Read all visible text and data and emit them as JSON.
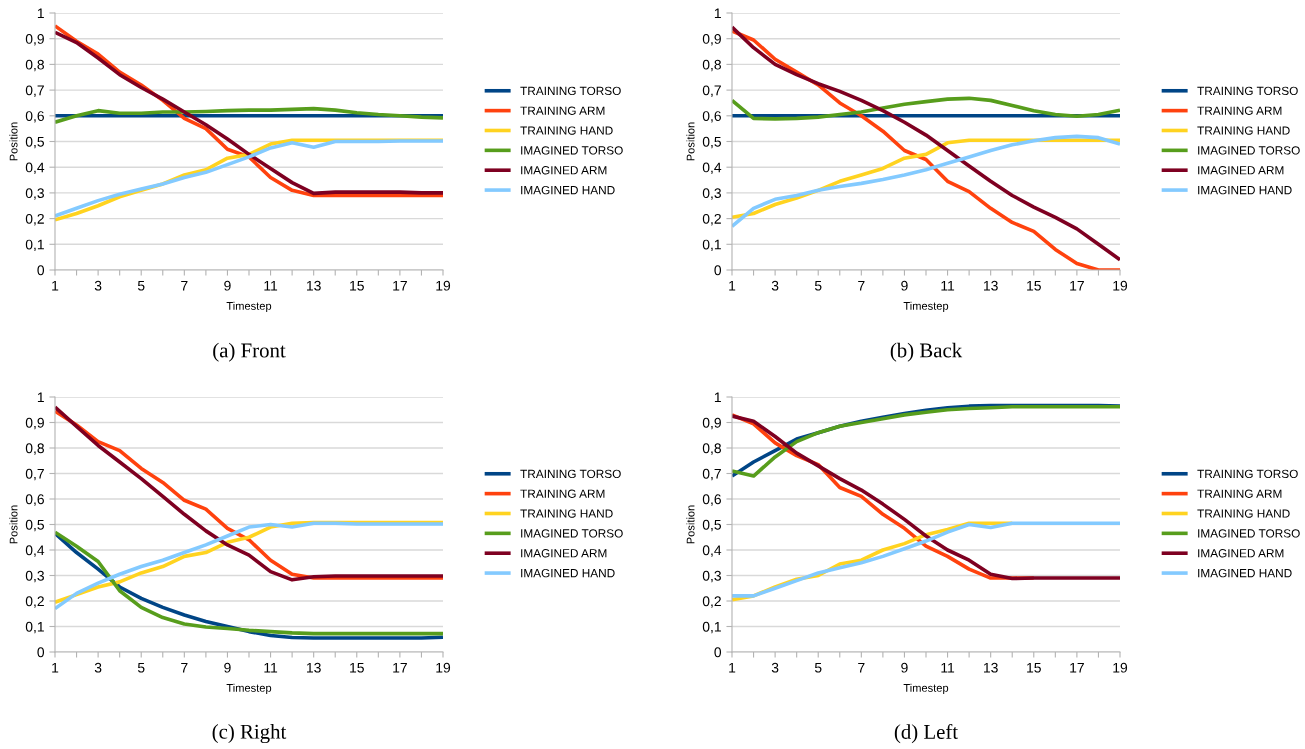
{
  "chart_data": [
    {
      "type": "line",
      "title": "(a) Front",
      "xlabel": "Timestep",
      "ylabel": "Position",
      "grid": "y",
      "legend": "right",
      "line_style": "solid",
      "marker": "none",
      "x": [
        1,
        2,
        3,
        4,
        5,
        6,
        7,
        8,
        9,
        10,
        11,
        12,
        13,
        14,
        15,
        16,
        17,
        18,
        19
      ],
      "xlim": [
        1,
        19
      ],
      "xticks": [
        1,
        {
          "value": 2,
          "label": null
        },
        3,
        {
          "value": 4,
          "label": null
        },
        5,
        {
          "value": 6,
          "label": null
        },
        7,
        {
          "value": 8,
          "label": null
        },
        9,
        {
          "value": 10,
          "label": null
        },
        11,
        {
          "value": 12,
          "label": null
        },
        13,
        {
          "value": 14,
          "label": null
        },
        15,
        {
          "value": 16,
          "label": null
        },
        17,
        {
          "value": 18,
          "label": null
        },
        19
      ],
      "ylim": [
        0,
        1
      ],
      "yticks": [
        0,
        {
          "value": 0.1,
          "label": "0,1"
        },
        {
          "value": 0.2,
          "label": "0,2"
        },
        {
          "value": 0.3,
          "label": "0,3"
        },
        {
          "value": 0.4,
          "label": "0,4"
        },
        {
          "value": 0.5,
          "label": "0,5"
        },
        {
          "value": 0.6,
          "label": "0,6"
        },
        {
          "value": 0.7,
          "label": "0,7"
        },
        {
          "value": 0.8,
          "label": "0,8"
        },
        {
          "value": 0.9,
          "label": "0,9"
        },
        1
      ],
      "series": [
        {
          "name": "TRAINING TORSO",
          "color": "#004586",
          "values": [
            0.6,
            0.6,
            0.6,
            0.6,
            0.6,
            0.6,
            0.6,
            0.6,
            0.6,
            0.6,
            0.6,
            0.6,
            0.6,
            0.6,
            0.6,
            0.6,
            0.6,
            0.6,
            0.6
          ]
        },
        {
          "name": "TRAINING ARM",
          "color": "#ff420e",
          "values": [
            0.95,
            0.89,
            0.84,
            0.77,
            0.72,
            0.66,
            0.59,
            0.55,
            0.47,
            0.44,
            0.36,
            0.31,
            0.29,
            0.29,
            0.29,
            0.29,
            0.29,
            0.29,
            0.29
          ]
        },
        {
          "name": "TRAINING HAND",
          "color": "#ffd320",
          "values": [
            0.195,
            0.22,
            0.25,
            0.285,
            0.31,
            0.335,
            0.37,
            0.39,
            0.435,
            0.45,
            0.49,
            0.505,
            0.505,
            0.505,
            0.505,
            0.505,
            0.505,
            0.505,
            0.505
          ]
        },
        {
          "name": "IMAGINED TORSO",
          "color": "#579d1c",
          "values": [
            0.575,
            0.6,
            0.62,
            0.61,
            0.61,
            0.615,
            0.615,
            0.617,
            0.62,
            0.622,
            0.622,
            0.625,
            0.628,
            0.622,
            0.612,
            0.605,
            0.6,
            0.595,
            0.592
          ]
        },
        {
          "name": "IMAGINED ARM",
          "color": "#7e0021",
          "values": [
            0.925,
            0.885,
            0.825,
            0.76,
            0.71,
            0.665,
            0.615,
            0.565,
            0.51,
            0.45,
            0.395,
            0.34,
            0.298,
            0.303,
            0.303,
            0.303,
            0.303,
            0.3,
            0.3
          ]
        },
        {
          "name": "IMAGINED HAND",
          "color": "#83caff",
          "values": [
            0.21,
            0.24,
            0.27,
            0.295,
            0.315,
            0.335,
            0.36,
            0.38,
            0.41,
            0.44,
            0.475,
            0.495,
            0.478,
            0.5,
            0.5,
            0.5,
            0.502,
            0.502,
            0.502
          ]
        }
      ]
    },
    {
      "type": "line",
      "title": "(b) Back",
      "xlabel": "Timestep",
      "ylabel": "Position",
      "grid": "y",
      "legend": "right",
      "line_style": "solid",
      "marker": "none",
      "x": [
        1,
        2,
        3,
        4,
        5,
        6,
        7,
        8,
        9,
        10,
        11,
        12,
        13,
        14,
        15,
        16,
        17,
        18,
        19
      ],
      "xlim": [
        1,
        19
      ],
      "xticks": [
        1,
        {
          "value": 2,
          "label": null
        },
        3,
        {
          "value": 4,
          "label": null
        },
        5,
        {
          "value": 6,
          "label": null
        },
        7,
        {
          "value": 8,
          "label": null
        },
        9,
        {
          "value": 10,
          "label": null
        },
        11,
        {
          "value": 12,
          "label": null
        },
        13,
        {
          "value": 14,
          "label": null
        },
        15,
        {
          "value": 16,
          "label": null
        },
        17,
        {
          "value": 18,
          "label": null
        },
        19
      ],
      "ylim": [
        0,
        1
      ],
      "yticks": [
        0,
        {
          "value": 0.1,
          "label": "0,1"
        },
        {
          "value": 0.2,
          "label": "0,2"
        },
        {
          "value": 0.3,
          "label": "0,3"
        },
        {
          "value": 0.4,
          "label": "0,4"
        },
        {
          "value": 0.5,
          "label": "0,5"
        },
        {
          "value": 0.6,
          "label": "0,6"
        },
        {
          "value": 0.7,
          "label": "0,7"
        },
        {
          "value": 0.8,
          "label": "0,8"
        },
        {
          "value": 0.9,
          "label": "0,9"
        },
        1
      ],
      "series": [
        {
          "name": "TRAINING TORSO",
          "color": "#004586",
          "values": [
            0.6,
            0.6,
            0.6,
            0.6,
            0.6,
            0.6,
            0.6,
            0.6,
            0.6,
            0.6,
            0.6,
            0.6,
            0.6,
            0.6,
            0.6,
            0.6,
            0.6,
            0.6,
            0.6
          ]
        },
        {
          "name": "TRAINING ARM",
          "color": "#ff420e",
          "values": [
            0.93,
            0.895,
            0.82,
            0.77,
            0.72,
            0.65,
            0.6,
            0.54,
            0.465,
            0.43,
            0.345,
            0.305,
            0.24,
            0.185,
            0.15,
            0.08,
            0.025,
            0,
            0
          ]
        },
        {
          "name": "TRAINING HAND",
          "color": "#ffd320",
          "values": [
            0.205,
            0.22,
            0.255,
            0.28,
            0.31,
            0.345,
            0.37,
            0.395,
            0.435,
            0.45,
            0.495,
            0.505,
            0.505,
            0.505,
            0.505,
            0.505,
            0.505,
            0.505,
            0.505
          ]
        },
        {
          "name": "IMAGINED TORSO",
          "color": "#579d1c",
          "values": [
            0.66,
            0.59,
            0.588,
            0.59,
            0.595,
            0.605,
            0.615,
            0.63,
            0.645,
            0.655,
            0.665,
            0.668,
            0.66,
            0.64,
            0.62,
            0.605,
            0.598,
            0.605,
            0.622
          ]
        },
        {
          "name": "IMAGINED ARM",
          "color": "#7e0021",
          "values": [
            0.945,
            0.865,
            0.8,
            0.76,
            0.725,
            0.695,
            0.66,
            0.62,
            0.575,
            0.525,
            0.465,
            0.405,
            0.345,
            0.29,
            0.245,
            0.205,
            0.16,
            0.1,
            0.04
          ]
        },
        {
          "name": "IMAGINED HAND",
          "color": "#83caff",
          "values": [
            0.17,
            0.24,
            0.275,
            0.29,
            0.31,
            0.325,
            0.337,
            0.352,
            0.37,
            0.39,
            0.415,
            0.44,
            0.465,
            0.487,
            0.503,
            0.515,
            0.52,
            0.515,
            0.49
          ]
        }
      ]
    },
    {
      "type": "line",
      "title": "(c) Right",
      "xlabel": "Timestep",
      "ylabel": "Position",
      "grid": "y",
      "legend": "right",
      "line_style": "solid",
      "marker": "none",
      "x": [
        1,
        2,
        3,
        4,
        5,
        6,
        7,
        8,
        9,
        10,
        11,
        12,
        13,
        14,
        15,
        16,
        17,
        18,
        19
      ],
      "xlim": [
        1,
        19
      ],
      "xticks": [
        1,
        {
          "value": 2,
          "label": null
        },
        3,
        {
          "value": 4,
          "label": null
        },
        5,
        {
          "value": 6,
          "label": null
        },
        7,
        {
          "value": 8,
          "label": null
        },
        9,
        {
          "value": 10,
          "label": null
        },
        11,
        {
          "value": 12,
          "label": null
        },
        13,
        {
          "value": 14,
          "label": null
        },
        15,
        {
          "value": 16,
          "label": null
        },
        17,
        {
          "value": 18,
          "label": null
        },
        19
      ],
      "ylim": [
        0,
        1
      ],
      "yticks": [
        0,
        {
          "value": 0.1,
          "label": "0,1"
        },
        {
          "value": 0.2,
          "label": "0,2"
        },
        {
          "value": 0.3,
          "label": "0,3"
        },
        {
          "value": 0.4,
          "label": "0,4"
        },
        {
          "value": 0.5,
          "label": "0,5"
        },
        {
          "value": 0.6,
          "label": "0,6"
        },
        {
          "value": 0.7,
          "label": "0,7"
        },
        {
          "value": 0.8,
          "label": "0,8"
        },
        {
          "value": 0.9,
          "label": "0,9"
        },
        1
      ],
      "series": [
        {
          "name": "TRAINING TORSO",
          "color": "#004586",
          "values": [
            0.465,
            0.39,
            0.325,
            0.255,
            0.21,
            0.175,
            0.145,
            0.12,
            0.1,
            0.08,
            0.065,
            0.057,
            0.055,
            0.055,
            0.055,
            0.055,
            0.055,
            0.055,
            0.058
          ]
        },
        {
          "name": "TRAINING ARM",
          "color": "#ff420e",
          "values": [
            0.945,
            0.89,
            0.825,
            0.79,
            0.72,
            0.665,
            0.595,
            0.56,
            0.485,
            0.44,
            0.36,
            0.305,
            0.29,
            0.29,
            0.29,
            0.29,
            0.29,
            0.29,
            0.29
          ]
        },
        {
          "name": "TRAINING HAND",
          "color": "#ffd320",
          "values": [
            0.195,
            0.225,
            0.255,
            0.275,
            0.31,
            0.335,
            0.375,
            0.39,
            0.43,
            0.45,
            0.49,
            0.505,
            0.508,
            0.508,
            0.508,
            0.508,
            0.508,
            0.508,
            0.508
          ]
        },
        {
          "name": "IMAGINED TORSO",
          "color": "#579d1c",
          "values": [
            0.47,
            0.415,
            0.355,
            0.24,
            0.175,
            0.135,
            0.11,
            0.098,
            0.092,
            0.085,
            0.08,
            0.075,
            0.072,
            0.072,
            0.072,
            0.072,
            0.072,
            0.072,
            0.072
          ]
        },
        {
          "name": "IMAGINED ARM",
          "color": "#7e0021",
          "values": [
            0.96,
            0.885,
            0.81,
            0.745,
            0.68,
            0.61,
            0.54,
            0.475,
            0.42,
            0.38,
            0.315,
            0.283,
            0.295,
            0.298,
            0.298,
            0.298,
            0.298,
            0.298,
            0.298
          ]
        },
        {
          "name": "IMAGINED HAND",
          "color": "#83caff",
          "values": [
            0.17,
            0.23,
            0.27,
            0.305,
            0.335,
            0.36,
            0.39,
            0.42,
            0.455,
            0.49,
            0.5,
            0.49,
            0.505,
            0.505,
            0.502,
            0.502,
            0.502,
            0.502,
            0.502
          ]
        }
      ]
    },
    {
      "type": "line",
      "title": "(d) Left",
      "xlabel": "Timestep",
      "ylabel": "Position",
      "grid": "y",
      "legend": "right",
      "line_style": "solid",
      "marker": "none",
      "x": [
        1,
        2,
        3,
        4,
        5,
        6,
        7,
        8,
        9,
        10,
        11,
        12,
        13,
        14,
        15,
        16,
        17,
        18,
        19
      ],
      "xlim": [
        1,
        19
      ],
      "xticks": [
        1,
        {
          "value": 2,
          "label": null
        },
        3,
        {
          "value": 4,
          "label": null
        },
        5,
        {
          "value": 6,
          "label": null
        },
        7,
        {
          "value": 8,
          "label": null
        },
        9,
        {
          "value": 10,
          "label": null
        },
        11,
        {
          "value": 12,
          "label": null
        },
        13,
        {
          "value": 14,
          "label": null
        },
        15,
        {
          "value": 16,
          "label": null
        },
        17,
        {
          "value": 18,
          "label": null
        },
        19
      ],
      "ylim": [
        0,
        1
      ],
      "yticks": [
        0,
        {
          "value": 0.1,
          "label": "0,1"
        },
        {
          "value": 0.2,
          "label": "0,2"
        },
        {
          "value": 0.3,
          "label": "0,3"
        },
        {
          "value": 0.4,
          "label": "0,4"
        },
        {
          "value": 0.5,
          "label": "0,5"
        },
        {
          "value": 0.6,
          "label": "0,6"
        },
        {
          "value": 0.7,
          "label": "0,7"
        },
        {
          "value": 0.8,
          "label": "0,8"
        },
        {
          "value": 0.9,
          "label": "0,9"
        },
        1
      ],
      "series": [
        {
          "name": "TRAINING TORSO",
          "color": "#004586",
          "values": [
            0.69,
            0.745,
            0.79,
            0.835,
            0.86,
            0.885,
            0.905,
            0.92,
            0.935,
            0.948,
            0.958,
            0.964,
            0.966,
            0.966,
            0.966,
            0.966,
            0.966,
            0.966,
            0.964
          ]
        },
        {
          "name": "TRAINING ARM",
          "color": "#ff420e",
          "values": [
            0.93,
            0.895,
            0.82,
            0.77,
            0.735,
            0.645,
            0.61,
            0.54,
            0.485,
            0.415,
            0.375,
            0.325,
            0.29,
            0.29,
            0.29,
            null,
            null,
            null,
            null
          ]
        },
        {
          "name": "TRAINING HAND",
          "color": "#ffd320",
          "values": [
            0.205,
            0.22,
            0.255,
            0.285,
            0.3,
            0.345,
            0.36,
            0.4,
            0.425,
            0.46,
            0.48,
            0.505,
            0.505,
            0.505,
            null,
            null,
            null,
            null,
            null
          ]
        },
        {
          "name": "IMAGINED TORSO",
          "color": "#579d1c",
          "values": [
            0.71,
            0.69,
            0.765,
            0.825,
            0.86,
            0.885,
            0.9,
            0.915,
            0.93,
            0.94,
            0.95,
            0.955,
            0.958,
            0.962,
            0.962,
            0.962,
            0.962,
            0.962,
            0.962
          ]
        },
        {
          "name": "IMAGINED ARM",
          "color": "#7e0021",
          "values": [
            0.925,
            0.905,
            0.845,
            0.78,
            0.73,
            0.68,
            0.635,
            0.58,
            0.52,
            0.455,
            0.4,
            0.36,
            0.305,
            0.288,
            0.29,
            0.29,
            0.29,
            0.29,
            0.29
          ]
        },
        {
          "name": "IMAGINED HAND",
          "color": "#83caff",
          "values": [
            0.22,
            0.22,
            0.25,
            0.28,
            0.31,
            0.33,
            0.35,
            0.375,
            0.405,
            0.435,
            0.47,
            0.5,
            0.488,
            0.505,
            0.505,
            0.505,
            0.505,
            0.505,
            0.505
          ]
        }
      ]
    }
  ]
}
